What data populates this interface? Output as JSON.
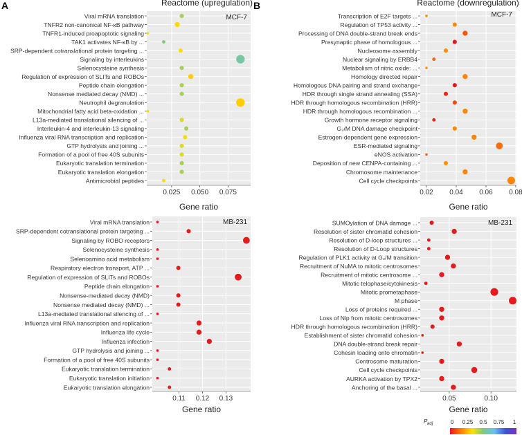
{
  "panel_labels": [
    "A",
    "B"
  ],
  "colorbar": {
    "title": "P",
    "title_sub": "adj",
    "ticks": [
      "0",
      "0.25",
      "0.5",
      "0.75",
      "1"
    ],
    "colors": [
      "#e41a1c",
      "#ff7f00",
      "#ffe000",
      "#7fc97f",
      "#66c2f5",
      "#3a56d4",
      "#7b2fbf"
    ]
  },
  "chart_data": [
    {
      "type": "scatter",
      "title": "Reactome (upregulation)",
      "cell_line": "MCF-7",
      "xlabel": "Gene ratio",
      "xlim": [
        0.003,
        0.095
      ],
      "xticks": [
        0.025,
        0.05,
        0.075
      ],
      "xtick_labels": [
        "0.025",
        "0.050",
        "0.075"
      ],
      "points": [
        {
          "term": "Viral mRNA translation",
          "ratio": 0.034,
          "size": 3,
          "padj": 0.45
        },
        {
          "term": "TNFR2 non-canonical NF-κB pathway",
          "ratio": 0.03,
          "size": 4,
          "padj": 0.32
        },
        {
          "term": "TNFR1-induced proapoptotic signaling",
          "ratio": 0.004,
          "size": 1,
          "padj": 0.35
        },
        {
          "term": "TAK1 activates NF-κB by ...",
          "ratio": 0.018,
          "size": 2,
          "padj": 0.5
        },
        {
          "term": "SRP-dependent cotranslational protein targeting ...",
          "ratio": 0.033,
          "size": 3,
          "padj": 0.33
        },
        {
          "term": "Signaling by interleukins",
          "ratio": 0.086,
          "size": 8,
          "padj": 0.55
        },
        {
          "term": "Selenocysteine synthesis",
          "ratio": 0.034,
          "size": 3,
          "padj": 0.45
        },
        {
          "term": "Regulation of expression of SLITs and ROBOs",
          "ratio": 0.042,
          "size": 4,
          "padj": 0.3
        },
        {
          "term": "Peptide chain elongation",
          "ratio": 0.034,
          "size": 3,
          "padj": 0.45
        },
        {
          "term": "Nonsense mediated decay (NMD) ...",
          "ratio": 0.034,
          "size": 3,
          "padj": 0.45
        },
        {
          "term": "Neutrophil degranulation",
          "ratio": 0.086,
          "size": 8,
          "padj": 0.3
        },
        {
          "term": "Mitochondrial fatty acid beta-oxidation ...",
          "ratio": 0.004,
          "size": 1,
          "padj": 0.35
        },
        {
          "term": "L13a-mediated translational silencing of ...",
          "ratio": 0.034,
          "size": 3,
          "padj": 0.38
        },
        {
          "term": "Interleukin-4 and interleukin-13 signaling",
          "ratio": 0.038,
          "size": 3,
          "padj": 0.45
        },
        {
          "term": "Influenza viral RNA transcription and replication",
          "ratio": 0.037,
          "size": 3,
          "padj": 0.35
        },
        {
          "term": "GTP hydrolysis and joining ...",
          "ratio": 0.034,
          "size": 3,
          "padj": 0.38
        },
        {
          "term": "Formation of a pool of free 40S subunits",
          "ratio": 0.034,
          "size": 3,
          "padj": 0.38
        },
        {
          "term": "Eukaryotic translation termination",
          "ratio": 0.034,
          "size": 3,
          "padj": 0.45
        },
        {
          "term": "Eukaryotic translation elongation",
          "ratio": 0.034,
          "size": 3,
          "padj": 0.45
        },
        {
          "term": "Antimicrobial peptides",
          "ratio": 0.018,
          "size": 2,
          "padj": 0.35
        }
      ]
    },
    {
      "type": "scatter",
      "title": "Reactome (downregulation)",
      "cell_line": "MCF-7",
      "xlabel": "Gene ratio",
      "xlim": [
        0.0158,
        0.0805
      ],
      "xticks": [
        0.02,
        0.04,
        0.06,
        0.08
      ],
      "xtick_labels": [
        "0.02",
        "0.04",
        "0.06",
        "0.08"
      ],
      "points": [
        {
          "term": "Transcription of E2F targets ...",
          "ratio": 0.02,
          "size": 1,
          "padj": 0.2
        },
        {
          "term": "Regulation of TP53 activity ...",
          "ratio": 0.039,
          "size": 3,
          "padj": 0.18
        },
        {
          "term": "Processing of DNA double-strand break ends",
          "ratio": 0.046,
          "size": 4,
          "padj": 0.1
        },
        {
          "term": "Presynaptic phase of homologous ...",
          "ratio": 0.039,
          "size": 3,
          "padj": 0.0
        },
        {
          "term": "Nucleosome assembly",
          "ratio": 0.033,
          "size": 3,
          "padj": 0.2
        },
        {
          "term": "Nuclear signaling by ERBB4",
          "ratio": 0.025,
          "size": 2,
          "padj": 0.12
        },
        {
          "term": "Metabolism of nitric oxide: ...",
          "ratio": 0.02,
          "size": 1,
          "padj": 0.2
        },
        {
          "term": "Homology directed repair",
          "ratio": 0.046,
          "size": 4,
          "padj": 0.18
        },
        {
          "term": "Homologous DNA pairing and strand exchange",
          "ratio": 0.039,
          "size": 3,
          "padj": 0.0
        },
        {
          "term": "HDR through single strand annealing (SSA)",
          "ratio": 0.033,
          "size": 3,
          "padj": 0.03
        },
        {
          "term": "HDR through homologous recombination (HRR)",
          "ratio": 0.039,
          "size": 3,
          "padj": 0.08
        },
        {
          "term": "HDR through homologous recombination ...",
          "ratio": 0.046,
          "size": 4,
          "padj": 0.18
        },
        {
          "term": "Growth hormone receptor signaling",
          "ratio": 0.025,
          "size": 2,
          "padj": 0.02
        },
        {
          "term": "G₂/M DNA damage checkpoint",
          "ratio": 0.039,
          "size": 3,
          "padj": 0.18
        },
        {
          "term": "Estrogen-dependent gene expression",
          "ratio": 0.052,
          "size": 4,
          "padj": 0.18
        },
        {
          "term": "ESR-mediated signaling",
          "ratio": 0.069,
          "size": 6,
          "padj": 0.14
        },
        {
          "term": "eNOS activation",
          "ratio": 0.02,
          "size": 1,
          "padj": 0.12
        },
        {
          "term": "Deposition of new CENPA-containing ...",
          "ratio": 0.033,
          "size": 3,
          "padj": 0.2
        },
        {
          "term": "Chromosome maintenance",
          "ratio": 0.046,
          "size": 4,
          "padj": 0.18
        },
        {
          "term": "Cell cycle checkpoints",
          "ratio": 0.077,
          "size": 7,
          "padj": 0.18
        }
      ]
    },
    {
      "type": "scatter",
      "cell_line": "MB-231",
      "xlabel": "Gene ratio",
      "xlim": [
        0.0986,
        0.1405
      ],
      "xticks": [
        0.11,
        0.12,
        0.13
      ],
      "xtick_labels": [
        "0.11",
        "0.12",
        "0.13"
      ],
      "points": [
        {
          "term": "Viral mRNA translation",
          "ratio": 0.1008,
          "size": 1,
          "padj": 0.0
        },
        {
          "term": "SRP-dependent cotranslational protein targeting ...",
          "ratio": 0.1141,
          "size": 3,
          "padj": 0.0
        },
        {
          "term": "Signaling by ROBO receptors",
          "ratio": 0.1387,
          "size": 6,
          "padj": 0.0
        },
        {
          "term": "Selenocysteine synthesis",
          "ratio": 0.1008,
          "size": 1,
          "padj": 0.0
        },
        {
          "term": "Selenoamino acid metabolism",
          "ratio": 0.1008,
          "size": 1,
          "padj": 0.0
        },
        {
          "term": "Respiratory electron transport, ATP ...",
          "ratio": 0.1097,
          "size": 3,
          "padj": 0.0
        },
        {
          "term": "Regulation of expression of SLITs and ROBOs",
          "ratio": 0.1352,
          "size": 6,
          "padj": 0.0
        },
        {
          "term": "Peptide chain elongation",
          "ratio": 0.1008,
          "size": 1,
          "padj": 0.0
        },
        {
          "term": "Nonsense-mediated decay (NMD)",
          "ratio": 0.1097,
          "size": 3,
          "padj": 0.0
        },
        {
          "term": "Nonsense mediated decay (NMD) ...",
          "ratio": 0.1097,
          "size": 3,
          "padj": 0.0
        },
        {
          "term": "L13a-mediated translational silencing of ...",
          "ratio": 0.1008,
          "size": 1,
          "padj": 0.0
        },
        {
          "term": "Influenza viral RNA transcription and replication",
          "ratio": 0.1185,
          "size": 4,
          "padj": 0.0
        },
        {
          "term": "Influenza life cycle",
          "ratio": 0.1185,
          "size": 4,
          "padj": 0.0
        },
        {
          "term": "Influenza infection",
          "ratio": 0.1229,
          "size": 4,
          "padj": 0.0
        },
        {
          "term": "GTP hydrolysis and joining ...",
          "ratio": 0.1008,
          "size": 1,
          "padj": 0.0
        },
        {
          "term": "Formation of a pool of free 40S subunits",
          "ratio": 0.1008,
          "size": 1,
          "padj": 0.0
        },
        {
          "term": "Eukaryotic translation termination",
          "ratio": 0.1059,
          "size": 2,
          "padj": 0.0
        },
        {
          "term": "Eukaryotic translation initiation",
          "ratio": 0.1008,
          "size": 1,
          "padj": 0.0
        },
        {
          "term": "Eukaryotic translation elongation",
          "ratio": 0.1059,
          "size": 2,
          "padj": 0.0
        }
      ]
    },
    {
      "type": "scatter",
      "cell_line": "MB-231",
      "xlabel": "Gene ratio",
      "xlim": [
        0.0153,
        0.1305
      ],
      "xticks": [
        0.05,
        0.1
      ],
      "xtick_labels": [
        "0.05",
        "0.10"
      ],
      "points": [
        {
          "term": "SUMOylation of DNA damage ...",
          "ratio": 0.029,
          "size": 3,
          "padj": 0.0
        },
        {
          "term": "Resolution of sister chromatid cohesion",
          "ratio": 0.056,
          "size": 4,
          "padj": 0.0
        },
        {
          "term": "Resolution of D-loop structures ...",
          "ratio": 0.0255,
          "size": 2,
          "padj": 0.0
        },
        {
          "term": "Resolution of D-Loop structures",
          "ratio": 0.0255,
          "size": 2,
          "padj": 0.0
        },
        {
          "term": "Regulation of PLK1 activity at G₂/M transition",
          "ratio": 0.048,
          "size": 4,
          "padj": 0.0
        },
        {
          "term": "Recruitment of NuMA to mitotic centrosomes",
          "ratio": 0.055,
          "size": 4,
          "padj": 0.0
        },
        {
          "term": "Recruitment of mitotic centrosome ...",
          "ratio": 0.041,
          "size": 4,
          "padj": 0.0
        },
        {
          "term": "Mitotic telophase/cytokinesis",
          "ratio": 0.022,
          "size": 2,
          "padj": 0.0
        },
        {
          "term": "Mitotic prometaphase",
          "ratio": 0.104,
          "size": 7,
          "padj": 0.0
        },
        {
          "term": "M phase",
          "ratio": 0.126,
          "size": 7,
          "padj": 0.0
        },
        {
          "term": "Loss of proteins required ...",
          "ratio": 0.041,
          "size": 4,
          "padj": 0.0
        },
        {
          "term": "Loss of Nlp from mitotic centrosomes",
          "ratio": 0.041,
          "size": 4,
          "padj": 0.0
        },
        {
          "term": "HDR through homologous recombination (HRR)",
          "ratio": 0.03,
          "size": 3,
          "padj": 0.0
        },
        {
          "term": "Establishment of sister chromatid cohesion",
          "ratio": 0.018,
          "size": 1,
          "padj": 0.0
        },
        {
          "term": "DNA double-strand break repair",
          "ratio": 0.062,
          "size": 4,
          "padj": 0.0
        },
        {
          "term": "Cohesin loading onto chromatin",
          "ratio": 0.018,
          "size": 1,
          "padj": 0.0
        },
        {
          "term": "Centrosome maturation",
          "ratio": 0.041,
          "size": 4,
          "padj": 0.0
        },
        {
          "term": "Cell cycle checkpoints",
          "ratio": 0.08,
          "size": 5,
          "padj": 0.0
        },
        {
          "term": "AURKA activation by TPX2",
          "ratio": 0.041,
          "size": 4,
          "padj": 0.0
        },
        {
          "term": "Anchoring of the basal ...",
          "ratio": 0.055,
          "size": 4,
          "padj": 0.0
        }
      ]
    }
  ]
}
